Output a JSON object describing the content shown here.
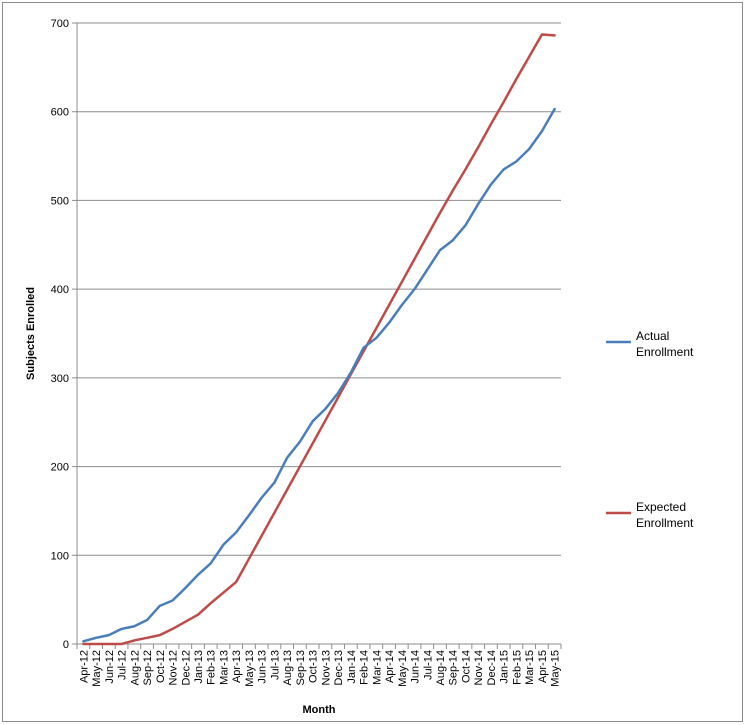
{
  "chart_data": {
    "type": "line",
    "title": "",
    "xlabel": "Month",
    "ylabel": "Subjects Enrolled",
    "ylim": [
      0,
      700
    ],
    "yticks": [
      "0",
      "100",
      "200",
      "300",
      "400",
      "500",
      "600",
      "700"
    ],
    "grid": "horizontal",
    "legend_position": "right",
    "categories": [
      "Apr-12",
      "May-12",
      "Jun-12",
      "Jul-12",
      "Aug-12",
      "Sep-12",
      "Oct-12",
      "Nov-12",
      "Dec-12",
      "Jan-13",
      "Feb-13",
      "Mar-13",
      "Apr-13",
      "May-13",
      "Jun-13",
      "Jul-13",
      "Aug-13",
      "Sep-13",
      "Oct-13",
      "Nov-13",
      "Dec-13",
      "Jan-14",
      "Feb-14",
      "Mar-14",
      "Apr-14",
      "May-14",
      "Jun-14",
      "Jul-14",
      "Aug-14",
      "Sep-14",
      "Oct-14",
      "Nov-14",
      "Dec-14",
      "Jan-15",
      "Feb-15",
      "Mar-15",
      "Apr-15",
      "May-15"
    ],
    "series": [
      {
        "name": "Actual Enrollment",
        "color": "#4a7ebb",
        "values": [
          3,
          7,
          10,
          17,
          20,
          27,
          43,
          49,
          63,
          78,
          91,
          112,
          126,
          145,
          165,
          182,
          210,
          228,
          251,
          265,
          283,
          306,
          334,
          345,
          362,
          382,
          400,
          422,
          444,
          455,
          472,
          496,
          518,
          535,
          544,
          558,
          578,
          603
        ]
      },
      {
        "name": "Expected Enrollment",
        "color": "#be4b48",
        "values": [
          0,
          0,
          0,
          0,
          4,
          7,
          10,
          17,
          25,
          33,
          46,
          58,
          70,
          96,
          122,
          148,
          174,
          200,
          226,
          252,
          278,
          304,
          330,
          356,
          382,
          408,
          434,
          460,
          486,
          511,
          535,
          560,
          586,
          611,
          637,
          662,
          687,
          686
        ]
      }
    ]
  }
}
